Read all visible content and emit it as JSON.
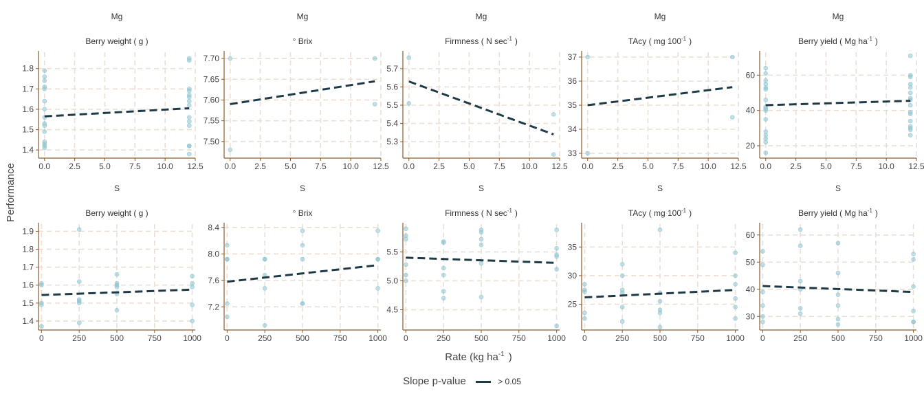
{
  "chart_data": {
    "type": "scatter",
    "ylabel": "Performance",
    "xlabel": "Rate (kg ha",
    "xlabel_sup": "-1",
    "xlabel_suffix": ")",
    "legend": {
      "title": "Slope p-value",
      "entry": "> 0.05",
      "position": "bottom"
    },
    "colors": {
      "points": "#8cc3cf",
      "line": "#1e3a46",
      "grid": "#eadfd4",
      "axis": "#8b5a2b"
    },
    "grid": true,
    "panels": [
      {
        "strip": "Mg",
        "title": "Berry weight ( g )",
        "xlim": [
          -0.5,
          12.5
        ],
        "xticks": [
          0,
          2.5,
          5,
          7.5,
          10,
          12.5
        ],
        "xtick_labels": [
          "0.0",
          "2.5",
          "5.0",
          "7.5",
          "10.0",
          "12.5"
        ],
        "ylim": [
          1.36,
          1.88
        ],
        "yticks": [
          1.4,
          1.5,
          1.6,
          1.7,
          1.8
        ],
        "ytick_labels": [
          "1.4",
          "1.5",
          "1.6",
          "1.7",
          "1.8"
        ],
        "points": [
          [
            0,
            1.79
          ],
          [
            0,
            1.76
          ],
          [
            0,
            1.74
          ],
          [
            0,
            1.71
          ],
          [
            0,
            1.7
          ],
          [
            0,
            1.64
          ],
          [
            0,
            1.6
          ],
          [
            0,
            1.56
          ],
          [
            0,
            1.53
          ],
          [
            0,
            1.52
          ],
          [
            0,
            1.49
          ],
          [
            0,
            1.44
          ],
          [
            0,
            1.43
          ],
          [
            0,
            1.42
          ],
          [
            0,
            1.41
          ],
          [
            12,
            1.85
          ],
          [
            12,
            1.84
          ],
          [
            12,
            1.7
          ],
          [
            12,
            1.69
          ],
          [
            12,
            1.67
          ],
          [
            12,
            1.66
          ],
          [
            12,
            1.64
          ],
          [
            12,
            1.62
          ],
          [
            12,
            1.56
          ],
          [
            12,
            1.54
          ],
          [
            12,
            1.52
          ],
          [
            12,
            1.42
          ],
          [
            12,
            1.42
          ],
          [
            12,
            1.38
          ]
        ],
        "trend": [
          [
            0,
            1.565
          ],
          [
            12,
            1.605
          ]
        ]
      },
      {
        "strip": "Mg",
        "title": "° Brix",
        "xlim": [
          -0.5,
          12.5
        ],
        "xticks": [
          0,
          2.5,
          5,
          7.5,
          10,
          12.5
        ],
        "xtick_labels": [
          "0.0",
          "2.5",
          "5.0",
          "7.5",
          "10.0",
          "12.5"
        ],
        "ylim": [
          7.46,
          7.715
        ],
        "yticks": [
          7.5,
          7.55,
          7.6,
          7.65,
          7.7
        ],
        "ytick_labels": [
          "7.50",
          "7.55",
          "7.60",
          "7.65",
          "7.70"
        ],
        "points": [
          [
            0,
            7.7
          ],
          [
            0,
            7.48
          ],
          [
            12,
            7.7
          ],
          [
            12,
            7.59
          ]
        ],
        "trend": [
          [
            0,
            7.59
          ],
          [
            12,
            7.645
          ]
        ]
      },
      {
        "strip": "Mg",
        "title": "Firmness ( N sec",
        "title_sup": "-1",
        "title_suffix": ")",
        "xlim": [
          -0.5,
          12.5
        ],
        "xticks": [
          0,
          2.5,
          5,
          7.5,
          10,
          12.5
        ],
        "xtick_labels": [
          "0.0",
          "2.5",
          "5.0",
          "7.5",
          "10.0",
          "12.5"
        ],
        "ylim": [
          5.21,
          5.79
        ],
        "yticks": [
          5.3,
          5.4,
          5.5,
          5.6,
          5.7
        ],
        "ytick_labels": [
          "5.3",
          "5.4",
          "5.5",
          "5.6",
          "5.7"
        ],
        "points": [
          [
            0,
            5.76
          ],
          [
            0,
            5.51
          ],
          [
            12,
            5.45
          ],
          [
            12,
            5.23
          ]
        ],
        "trend": [
          [
            0,
            5.63
          ],
          [
            12,
            5.34
          ]
        ]
      },
      {
        "strip": "Mg",
        "title": "TAcy ( mg 100",
        "title_sup": "-1",
        "title_suffix": ")",
        "xlim": [
          -0.5,
          12.5
        ],
        "xticks": [
          0,
          2.5,
          5,
          7.5,
          10,
          12.5
        ],
        "xtick_labels": [
          "0.0",
          "2.5",
          "5.0",
          "7.5",
          "10.0",
          "12.5"
        ],
        "ylim": [
          32.8,
          37.2
        ],
        "yticks": [
          33,
          34,
          35,
          36,
          37
        ],
        "ytick_labels": [
          "33",
          "34",
          "35",
          "36",
          "37"
        ],
        "points": [
          [
            0,
            37.0
          ],
          [
            0,
            33.0
          ],
          [
            12,
            37.0
          ],
          [
            12,
            34.5
          ]
        ],
        "trend": [
          [
            0,
            35.0
          ],
          [
            12,
            35.75
          ]
        ]
      },
      {
        "strip": "Mg",
        "title": "Berry yield ( Mg ha",
        "title_sup": "-1",
        "title_suffix": ")",
        "xlim": [
          -0.5,
          12.5
        ],
        "xticks": [
          0,
          2.5,
          5,
          7.5,
          10,
          12.5
        ],
        "xtick_labels": [
          "0.0",
          "2.5",
          "5.0",
          "7.5",
          "10.0",
          "12.5"
        ],
        "ylim": [
          13,
          73
        ],
        "yticks": [
          20,
          40,
          60
        ],
        "ytick_labels": [
          "20",
          "40",
          "60"
        ],
        "points": [
          [
            0,
            64
          ],
          [
            0,
            61
          ],
          [
            0,
            57
          ],
          [
            0,
            55
          ],
          [
            0,
            53
          ],
          [
            0,
            52
          ],
          [
            0,
            46
          ],
          [
            0,
            42
          ],
          [
            0,
            41
          ],
          [
            0,
            40
          ],
          [
            0,
            35
          ],
          [
            0,
            28
          ],
          [
            0,
            26
          ],
          [
            0,
            24
          ],
          [
            0,
            22
          ],
          [
            0,
            16
          ],
          [
            12,
            71
          ],
          [
            12,
            60
          ],
          [
            12,
            59
          ],
          [
            12,
            55
          ],
          [
            12,
            53
          ],
          [
            12,
            50
          ],
          [
            12,
            47
          ],
          [
            12,
            46
          ],
          [
            12,
            43
          ],
          [
            12,
            39
          ],
          [
            12,
            38
          ],
          [
            12,
            34
          ],
          [
            12,
            31
          ],
          [
            12,
            30
          ],
          [
            12,
            29
          ],
          [
            12,
            26
          ]
        ],
        "trend": [
          [
            0,
            43
          ],
          [
            12,
            45.5
          ]
        ]
      },
      {
        "strip": "S",
        "title": "Berry weight ( g )",
        "xlim": [
          -20,
          1020
        ],
        "xticks": [
          0,
          250,
          500,
          750,
          1000
        ],
        "xtick_labels": [
          "0",
          "250",
          "500",
          "750",
          "1000"
        ],
        "ylim": [
          1.35,
          1.94
        ],
        "yticks": [
          1.4,
          1.5,
          1.6,
          1.7,
          1.8,
          1.9
        ],
        "ytick_labels": [
          "1.4",
          "1.5",
          "1.6",
          "1.7",
          "1.8",
          "1.9"
        ],
        "points": [
          [
            0,
            1.61
          ],
          [
            0,
            1.6
          ],
          [
            0,
            1.5
          ],
          [
            0,
            1.49
          ],
          [
            0,
            1.37
          ],
          [
            250,
            1.91
          ],
          [
            250,
            1.62
          ],
          [
            250,
            1.52
          ],
          [
            250,
            1.51
          ],
          [
            250,
            1.5
          ],
          [
            250,
            1.39
          ],
          [
            500,
            1.66
          ],
          [
            500,
            1.61
          ],
          [
            500,
            1.6
          ],
          [
            500,
            1.59
          ],
          [
            500,
            1.55
          ],
          [
            500,
            1.46
          ],
          [
            1000,
            1.65
          ],
          [
            1000,
            1.61
          ],
          [
            1000,
            1.59
          ],
          [
            1000,
            1.49
          ],
          [
            1000,
            1.4
          ]
        ],
        "trend": [
          [
            0,
            1.545
          ],
          [
            1000,
            1.575
          ]
        ]
      },
      {
        "strip": "S",
        "title": "° Brix",
        "xlim": [
          -20,
          1020
        ],
        "xticks": [
          0,
          250,
          500,
          750,
          1000
        ],
        "xtick_labels": [
          "0",
          "250",
          "500",
          "750",
          "1000"
        ],
        "ylim": [
          6.85,
          8.45
        ],
        "yticks": [
          7.2,
          7.6,
          8.0,
          8.4
        ],
        "ytick_labels": [
          "7.2",
          "7.6",
          "8.0",
          "8.4"
        ],
        "points": [
          [
            0,
            8.13
          ],
          [
            0,
            7.92
          ],
          [
            0,
            7.92
          ],
          [
            0,
            7.25
          ],
          [
            0,
            7.05
          ],
          [
            250,
            7.92
          ],
          [
            250,
            7.92
          ],
          [
            250,
            7.68
          ],
          [
            250,
            7.48
          ],
          [
            250,
            6.92
          ],
          [
            500,
            8.35
          ],
          [
            500,
            8.13
          ],
          [
            500,
            7.92
          ],
          [
            500,
            7.25
          ],
          [
            500,
            7.25
          ],
          [
            1000,
            8.35
          ],
          [
            1000,
            7.92
          ],
          [
            1000,
            7.92
          ],
          [
            1000,
            7.48
          ]
        ],
        "trend": [
          [
            0,
            7.58
          ],
          [
            1000,
            7.83
          ]
        ]
      },
      {
        "strip": "S",
        "title": "Firmness ( N sec",
        "title_sup": "-1",
        "title_suffix": ")",
        "xlim": [
          -20,
          1020
        ],
        "xticks": [
          0,
          250,
          500,
          750,
          1000
        ],
        "xtick_labels": [
          "0",
          "250",
          "500",
          "750",
          "1000"
        ],
        "ylim": [
          4.15,
          5.98
        ],
        "yticks": [
          4.5,
          5.0,
          5.5
        ],
        "ytick_labels": [
          "4.5",
          "5.0",
          "5.5"
        ],
        "points": [
          [
            0,
            5.9
          ],
          [
            0,
            5.78
          ],
          [
            0,
            5.72
          ],
          [
            0,
            5.28
          ],
          [
            0,
            5.1
          ],
          [
            0,
            5.0
          ],
          [
            250,
            5.68
          ],
          [
            250,
            5.66
          ],
          [
            250,
            5.22
          ],
          [
            250,
            5.1
          ],
          [
            250,
            4.82
          ],
          [
            250,
            4.7
          ],
          [
            500,
            5.88
          ],
          [
            500,
            5.84
          ],
          [
            500,
            5.72
          ],
          [
            500,
            5.62
          ],
          [
            500,
            5.3
          ],
          [
            500,
            4.72
          ],
          [
            1000,
            5.88
          ],
          [
            1000,
            5.56
          ],
          [
            1000,
            5.45
          ],
          [
            1000,
            5.42
          ],
          [
            1000,
            5.2
          ],
          [
            1000,
            4.22
          ]
        ],
        "trend": [
          [
            0,
            5.4
          ],
          [
            1000,
            5.31
          ]
        ]
      },
      {
        "strip": "S",
        "title": "TAcy ( mg 100",
        "title_sup": "-1",
        "title_suffix": ")",
        "xlim": [
          -20,
          1020
        ],
        "xticks": [
          0,
          250,
          500,
          750,
          1000
        ],
        "xtick_labels": [
          "0",
          "250",
          "500",
          "750",
          "1000"
        ],
        "ylim": [
          20.5,
          39
        ],
        "yticks": [
          25,
          30,
          35
        ],
        "ytick_labels": [
          "25",
          "30",
          "35"
        ],
        "points": [
          [
            0,
            28.5
          ],
          [
            0,
            27.5
          ],
          [
            0,
            27.2
          ],
          [
            0,
            23.5
          ],
          [
            0,
            22.5
          ],
          [
            250,
            32.0
          ],
          [
            250,
            30.0
          ],
          [
            250,
            27.5
          ],
          [
            250,
            27.0
          ],
          [
            250,
            24.5
          ],
          [
            250,
            22.0
          ],
          [
            500,
            38.0
          ],
          [
            500,
            27.0
          ],
          [
            500,
            25.5
          ],
          [
            500,
            24.0
          ],
          [
            500,
            23.5
          ],
          [
            500,
            21.0
          ],
          [
            1000,
            34.0
          ],
          [
            1000,
            30.0
          ],
          [
            1000,
            28.5
          ],
          [
            1000,
            26.0
          ],
          [
            1000,
            24.5
          ],
          [
            1000,
            22.5
          ]
        ],
        "trend": [
          [
            0,
            26.2
          ],
          [
            1000,
            27.5
          ]
        ]
      },
      {
        "strip": "S",
        "title": "Berry yield ( Mg ha",
        "title_sup": "-1",
        "title_suffix": ")",
        "xlim": [
          -20,
          1020
        ],
        "xticks": [
          0,
          250,
          500,
          750,
          1000
        ],
        "xtick_labels": [
          "0",
          "250",
          "500",
          "750",
          "1000"
        ],
        "ylim": [
          25,
          64
        ],
        "yticks": [
          30,
          40,
          50,
          60
        ],
        "ytick_labels": [
          "30",
          "40",
          "50",
          "60"
        ],
        "points": [
          [
            0,
            54
          ],
          [
            0,
            49
          ],
          [
            0,
            39
          ],
          [
            0,
            34
          ],
          [
            0,
            30
          ],
          [
            0,
            28
          ],
          [
            250,
            62
          ],
          [
            250,
            56
          ],
          [
            250,
            43
          ],
          [
            250,
            40
          ],
          [
            250,
            33
          ],
          [
            250,
            31
          ],
          [
            500,
            57
          ],
          [
            500,
            46
          ],
          [
            500,
            38
          ],
          [
            500,
            34
          ],
          [
            500,
            29
          ],
          [
            500,
            27
          ],
          [
            1000,
            53
          ],
          [
            1000,
            51
          ],
          [
            1000,
            41
          ],
          [
            1000,
            32
          ],
          [
            1000,
            28
          ],
          [
            1000,
            28
          ]
        ],
        "trend": [
          [
            0,
            41.2
          ],
          [
            1000,
            39.0
          ]
        ]
      }
    ]
  }
}
